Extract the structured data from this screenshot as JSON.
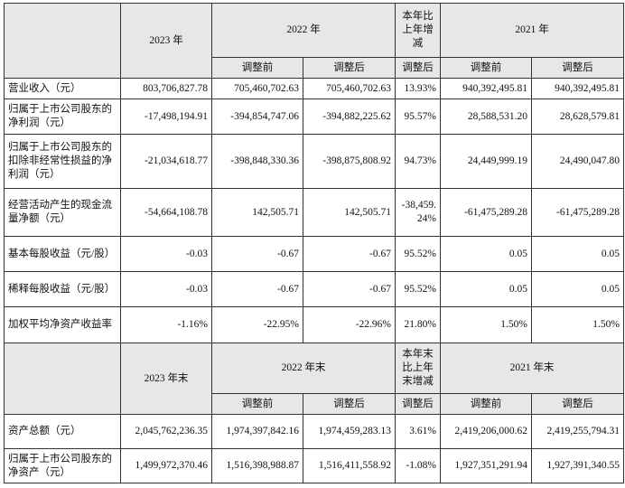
{
  "header1": {
    "year2023": "2023 年",
    "year2022": "2022 年",
    "change": "本年比上年增减",
    "year2021": "2021 年",
    "before": "调整前",
    "after": "调整后",
    "change_after": "调整后",
    "before2021": "调整前",
    "after2021": "调整后"
  },
  "rows1": [
    {
      "label": "营业收入（元）",
      "v2023": "803,706,827.78",
      "v2022_before": "705,460,702.63",
      "v2022_after": "705,460,702.63",
      "change": "13.93%",
      "v2021_before": "940,392,495.81",
      "v2021_after": "940,392,495.81"
    },
    {
      "label": "归属于上市公司股东的净利润（元）",
      "v2023": "-17,498,194.91",
      "v2022_before": "-394,854,747.06",
      "v2022_after": "-394,882,225.62",
      "change": "95.57%",
      "v2021_before": "28,588,531.20",
      "v2021_after": "28,628,579.81"
    },
    {
      "label": "归属于上市公司股东的扣除非经常性损益的净利润（元）",
      "v2023": "-21,034,618.77",
      "v2022_before": "-398,848,330.36",
      "v2022_after": "-398,875,808.92",
      "change": "94.73%",
      "v2021_before": "24,449,999.19",
      "v2021_after": "24,490,047.80"
    },
    {
      "label": "经营活动产生的现金流量净额（元）",
      "v2023": "-54,664,108.78",
      "v2022_before": "142,505.71",
      "v2022_after": "142,505.71",
      "change": "-38,459.24%",
      "v2021_before": "-61,475,289.28",
      "v2021_after": "-61,475,289.28"
    },
    {
      "label": "基本每股收益（元/股）",
      "v2023": "-0.03",
      "v2022_before": "-0.67",
      "v2022_after": "-0.67",
      "change": "95.52%",
      "v2021_before": "0.05",
      "v2021_after": "0.05"
    },
    {
      "label": "稀释每股收益（元/股）",
      "v2023": "-0.03",
      "v2022_before": "-0.67",
      "v2022_after": "-0.67",
      "change": "95.52%",
      "v2021_before": "0.05",
      "v2021_after": "0.05"
    },
    {
      "label": "加权平均净资产收益率",
      "v2023": "-1.16%",
      "v2022_before": "-22.95%",
      "v2022_after": "-22.96%",
      "change": "21.80%",
      "v2021_before": "1.50%",
      "v2021_after": "1.50%"
    }
  ],
  "header2": {
    "year2023": "2023 年末",
    "year2022": "2022 年末",
    "change": "本年末比上年末增减",
    "year2021": "2021 年末",
    "before": "调整前",
    "after": "调整后",
    "change_after": "调整后",
    "before2021": "调整前",
    "after2021": "调整后"
  },
  "rows2": [
    {
      "label": "资产总额（元）",
      "v2023": "2,045,762,236.35",
      "v2022_before": "1,974,397,842.16",
      "v2022_after": "1,974,459,283.13",
      "change": "3.61%",
      "v2021_before": "2,419,206,000.62",
      "v2021_after": "2,419,255,794.31"
    },
    {
      "label": "归属于上市公司股东的净资产（元）",
      "v2023": "1,499,972,370.46",
      "v2022_before": "1,516,398,988.87",
      "v2022_after": "1,516,411,558.92",
      "change": "-1.08%",
      "v2021_before": "1,927,351,291.94",
      "v2021_after": "1,927,391,340.55"
    }
  ]
}
